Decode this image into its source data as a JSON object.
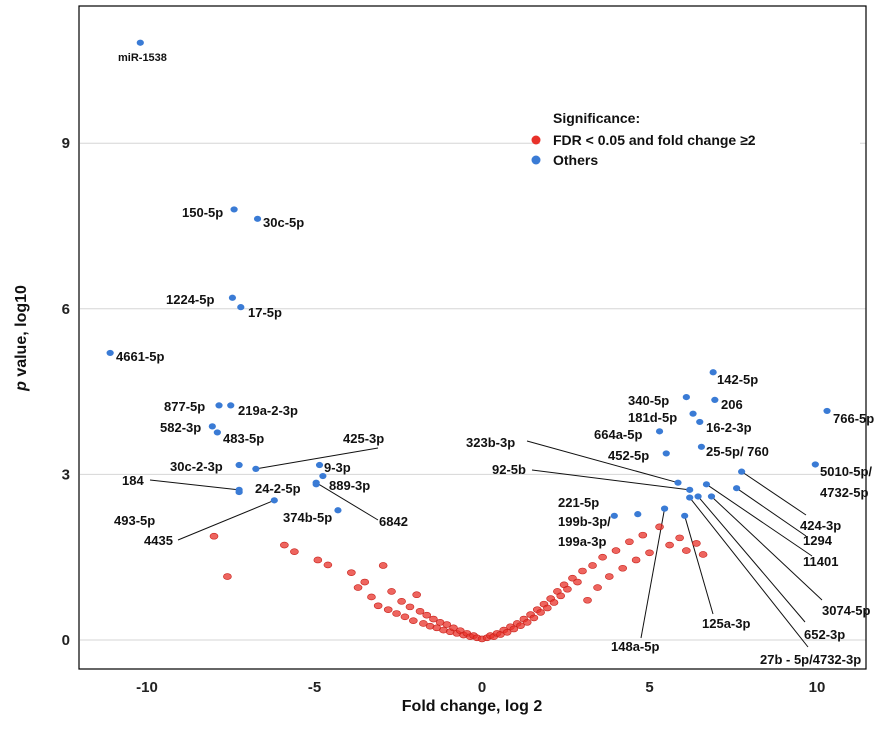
{
  "chart_data": {
    "type": "scatter",
    "title": "",
    "xlabel": "Fold change, log 2",
    "ylabel_prefix": "p",
    "ylabel_suffix": " value, log10",
    "xlim": [
      -12,
      12
    ],
    "ylim": [
      -0.5,
      11
    ],
    "xticks": [
      {
        "value": -10,
        "label": "-10"
      },
      {
        "value": -5,
        "label": "-5"
      },
      {
        "value": 0,
        "label": "0"
      },
      {
        "value": 5,
        "label": "5"
      },
      {
        "value": 10,
        "label": "10"
      }
    ],
    "yticks": [
      {
        "value": 0,
        "label": "0"
      },
      {
        "value": 3,
        "label": "3"
      },
      {
        "value": 6,
        "label": "6"
      },
      {
        "value": 9,
        "label": "9"
      }
    ],
    "grid": "horizontal",
    "legend": {
      "position": "top-right",
      "title": "Significance:",
      "entries": [
        {
          "label": "FDR < 0.05 and fold change ≥2",
          "color": "#e8312a"
        },
        {
          "label": "Others",
          "color": "#3a7bd5"
        }
      ]
    },
    "series": [
      {
        "key": "others",
        "color": "#3a7bd5",
        "points": [
          {
            "x": -10.2,
            "y": 10.82,
            "label": "miR-1538"
          },
          {
            "x": -7.4,
            "y": 7.8,
            "label": "150-5p"
          },
          {
            "x": -6.7,
            "y": 7.63,
            "label": "30c-5p"
          },
          {
            "x": -7.45,
            "y": 6.2,
            "label": "1224-5p"
          },
          {
            "x": -7.2,
            "y": 6.03,
            "label": "17-5p"
          },
          {
            "x": -11.1,
            "y": 5.2,
            "label": "4661-5p"
          },
          {
            "x": -7.85,
            "y": 4.25,
            "label": "877-5p"
          },
          {
            "x": -7.5,
            "y": 4.25,
            "label": "219a-2-3p"
          },
          {
            "x": -8.05,
            "y": 3.87,
            "label": "582-3p"
          },
          {
            "x": -7.9,
            "y": 3.76,
            "label": "483-5p"
          },
          {
            "x": -7.25,
            "y": 3.17,
            "label": "30c-2-3p"
          },
          {
            "x": -6.75,
            "y": 3.1,
            "label": "425-3p"
          },
          {
            "x": -7.25,
            "y": 2.72,
            "label": "184"
          },
          {
            "x": -7.25,
            "y": 2.68,
            "label": "493-5p"
          },
          {
            "x": -6.2,
            "y": 2.53,
            "label": "4435"
          },
          {
            "x": -4.85,
            "y": 3.17,
            "label": "9-3p"
          },
          {
            "x": -4.75,
            "y": 2.97,
            "label": "889-3p"
          },
          {
            "x": -4.95,
            "y": 2.82,
            "label": "24-2-5p"
          },
          {
            "x": -4.3,
            "y": 2.35,
            "label": "374b-5p"
          },
          {
            "x": -4.95,
            "y": 2.85,
            "label": "6842"
          },
          {
            "x": 6.9,
            "y": 4.85,
            "label": "142-5p"
          },
          {
            "x": 6.1,
            "y": 4.4,
            "label": "340-5p"
          },
          {
            "x": 6.95,
            "y": 4.35,
            "label": "206"
          },
          {
            "x": 6.3,
            "y": 4.1,
            "label": "181d-5p"
          },
          {
            "x": 6.5,
            "y": 3.95,
            "label": "16-2-3p"
          },
          {
            "x": 5.3,
            "y": 3.78,
            "label": "664a-5p"
          },
          {
            "x": 6.55,
            "y": 3.5,
            "label": "25-5p/ 760"
          },
          {
            "x": 5.5,
            "y": 3.38,
            "label": "452-5p"
          },
          {
            "x": 10.3,
            "y": 4.15,
            "label": "766-5p"
          },
          {
            "x": 9.95,
            "y": 3.18,
            "label": "5010-5p/ 4732-5p"
          },
          {
            "x": 5.85,
            "y": 2.85,
            "label": "323b-3p"
          },
          {
            "x": 6.2,
            "y": 2.72,
            "label": "92-5b"
          },
          {
            "x": 4.65,
            "y": 2.28,
            "label": "221-5p"
          },
          {
            "x": 3.95,
            "y": 2.25,
            "label": "199b-3p/ 199a-3p"
          },
          {
            "x": 5.45,
            "y": 2.38,
            "label": "148a-5p"
          },
          {
            "x": 6.05,
            "y": 2.25,
            "label": "125a-3p"
          },
          {
            "x": 7.75,
            "y": 3.05,
            "label": "424-3p"
          },
          {
            "x": 7.6,
            "y": 2.75,
            "label": "1294"
          },
          {
            "x": 6.7,
            "y": 2.82,
            "label": "11401"
          },
          {
            "x": 6.85,
            "y": 2.6,
            "label": "3074-5p"
          },
          {
            "x": 6.45,
            "y": 2.6,
            "label": "652-3p"
          },
          {
            "x": 6.2,
            "y": 2.58,
            "label": "27b - 5p/4732-3p"
          }
        ]
      },
      {
        "key": "significant",
        "color": "#e8312a",
        "points": [
          {
            "x": -8.0,
            "y": 1.88
          },
          {
            "x": -7.6,
            "y": 1.15
          },
          {
            "x": -5.9,
            "y": 1.72
          },
          {
            "x": -5.6,
            "y": 1.6
          },
          {
            "x": -4.9,
            "y": 1.45
          },
          {
            "x": -4.6,
            "y": 1.36
          },
          {
            "x": -3.9,
            "y": 1.22
          },
          {
            "x": -3.7,
            "y": 0.95
          },
          {
            "x": -3.5,
            "y": 1.05
          },
          {
            "x": -3.3,
            "y": 0.78
          },
          {
            "x": -3.1,
            "y": 0.62
          },
          {
            "x": -2.95,
            "y": 1.35
          },
          {
            "x": -2.8,
            "y": 0.55
          },
          {
            "x": -2.7,
            "y": 0.88
          },
          {
            "x": -2.55,
            "y": 0.48
          },
          {
            "x": -2.4,
            "y": 0.7
          },
          {
            "x": -2.3,
            "y": 0.42
          },
          {
            "x": -2.15,
            "y": 0.6
          },
          {
            "x": -2.05,
            "y": 0.35
          },
          {
            "x": -1.95,
            "y": 0.82
          },
          {
            "x": -1.85,
            "y": 0.52
          },
          {
            "x": -1.75,
            "y": 0.3
          },
          {
            "x": -1.65,
            "y": 0.45
          },
          {
            "x": -1.55,
            "y": 0.25
          },
          {
            "x": -1.45,
            "y": 0.38
          },
          {
            "x": -1.35,
            "y": 0.22
          },
          {
            "x": -1.25,
            "y": 0.32
          },
          {
            "x": -1.15,
            "y": 0.18
          },
          {
            "x": -1.05,
            "y": 0.28
          },
          {
            "x": -0.95,
            "y": 0.15
          },
          {
            "x": -0.85,
            "y": 0.22
          },
          {
            "x": -0.75,
            "y": 0.12
          },
          {
            "x": -0.65,
            "y": 0.17
          },
          {
            "x": -0.55,
            "y": 0.09
          },
          {
            "x": -0.45,
            "y": 0.12
          },
          {
            "x": -0.35,
            "y": 0.06
          },
          {
            "x": -0.25,
            "y": 0.08
          },
          {
            "x": -0.15,
            "y": 0.04
          },
          {
            "x": 0.0,
            "y": 0.02
          },
          {
            "x": 0.15,
            "y": 0.04
          },
          {
            "x": 0.25,
            "y": 0.08
          },
          {
            "x": 0.35,
            "y": 0.06
          },
          {
            "x": 0.45,
            "y": 0.12
          },
          {
            "x": 0.55,
            "y": 0.1
          },
          {
            "x": 0.65,
            "y": 0.18
          },
          {
            "x": 0.75,
            "y": 0.14
          },
          {
            "x": 0.85,
            "y": 0.24
          },
          {
            "x": 0.95,
            "y": 0.2
          },
          {
            "x": 1.05,
            "y": 0.3
          },
          {
            "x": 1.15,
            "y": 0.26
          },
          {
            "x": 1.25,
            "y": 0.38
          },
          {
            "x": 1.35,
            "y": 0.32
          },
          {
            "x": 1.45,
            "y": 0.46
          },
          {
            "x": 1.55,
            "y": 0.4
          },
          {
            "x": 1.65,
            "y": 0.55
          },
          {
            "x": 1.75,
            "y": 0.5
          },
          {
            "x": 1.85,
            "y": 0.65
          },
          {
            "x": 1.95,
            "y": 0.58
          },
          {
            "x": 2.05,
            "y": 0.75
          },
          {
            "x": 2.15,
            "y": 0.68
          },
          {
            "x": 2.25,
            "y": 0.88
          },
          {
            "x": 2.35,
            "y": 0.8
          },
          {
            "x": 2.45,
            "y": 1.0
          },
          {
            "x": 2.55,
            "y": 0.92
          },
          {
            "x": 2.7,
            "y": 1.12
          },
          {
            "x": 2.85,
            "y": 1.05
          },
          {
            "x": 3.0,
            "y": 1.25
          },
          {
            "x": 3.15,
            "y": 0.72
          },
          {
            "x": 3.3,
            "y": 1.35
          },
          {
            "x": 3.45,
            "y": 0.95
          },
          {
            "x": 3.6,
            "y": 1.5
          },
          {
            "x": 3.8,
            "y": 1.15
          },
          {
            "x": 4.0,
            "y": 1.62
          },
          {
            "x": 4.2,
            "y": 1.3
          },
          {
            "x": 4.4,
            "y": 1.78
          },
          {
            "x": 4.6,
            "y": 1.45
          },
          {
            "x": 4.8,
            "y": 1.9
          },
          {
            "x": 5.0,
            "y": 1.58
          },
          {
            "x": 5.3,
            "y": 2.05
          },
          {
            "x": 5.6,
            "y": 1.72
          },
          {
            "x": 5.9,
            "y": 1.85
          },
          {
            "x": 6.1,
            "y": 1.62
          },
          {
            "x": 6.4,
            "y": 1.75
          },
          {
            "x": 6.6,
            "y": 1.55
          }
        ]
      }
    ]
  }
}
